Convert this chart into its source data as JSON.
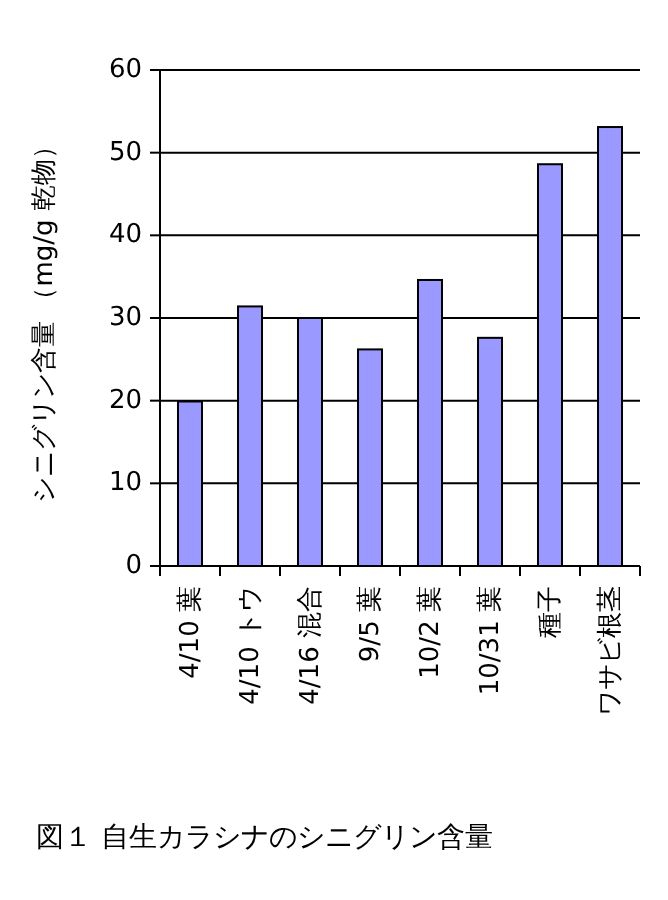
{
  "chart_data": {
    "type": "bar",
    "title": "図１ 自生カラシナのシニグリン含量",
    "ylabel": "シニグリン含量 （mg/g 乾物）",
    "categories": [
      "4/10 葉",
      "4/10 トウ",
      "4/16 混合",
      "9/5 葉",
      "10/2 葉",
      "10/31 葉",
      "種子",
      "ワサビ根茎"
    ],
    "values": [
      19.9,
      31.4,
      30.0,
      26.2,
      34.6,
      27.6,
      48.6,
      53.1
    ],
    "color": "#9999ff",
    "ylim": [
      0,
      60
    ],
    "yticks": [
      0,
      10,
      20,
      30,
      40,
      50,
      60
    ],
    "grid": "y"
  }
}
